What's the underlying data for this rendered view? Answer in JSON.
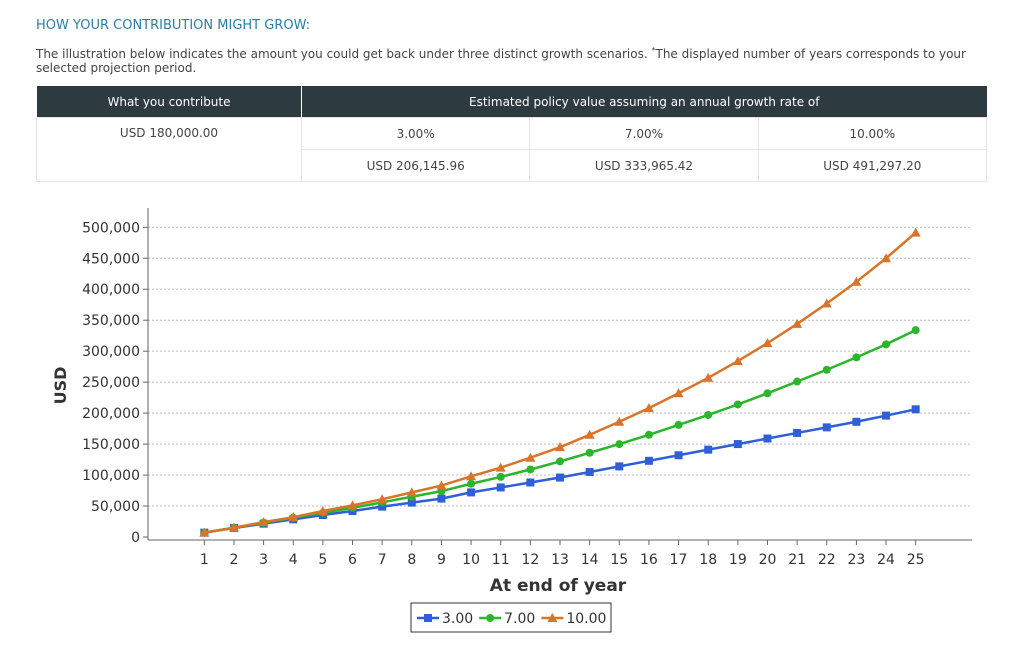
{
  "heading": "HOW YOUR CONTRIBUTION MIGHT GROW:",
  "intro": "The illustration below indicates the amount you could get back under three distinct growth scenarios.",
  "note_mark": "*",
  "note": "The displayed number of years corresponds to your selected projection period.",
  "table": {
    "headers": [
      "What you contribute",
      "Estimated policy value assuming an annual growth rate of"
    ],
    "contribution": "USD 180,000.00",
    "rates": [
      "3.00%",
      "7.00%",
      "10.00%"
    ],
    "values": [
      "USD 206,145.96",
      "USD 333,965.42",
      "USD 491,297.20"
    ]
  },
  "chart_data": {
    "type": "line",
    "x": [
      1,
      2,
      3,
      4,
      5,
      6,
      7,
      8,
      9,
      10,
      11,
      12,
      13,
      14,
      15,
      16,
      17,
      18,
      19,
      20,
      21,
      22,
      23,
      24,
      25
    ],
    "xlabel": "At end of year",
    "ylabel": "USD",
    "xlim": [
      -0.9,
      26.9
    ],
    "ylim": [
      0,
      515000
    ],
    "yticks": [
      0,
      {
        "value": 50000,
        "label": "50,000"
      },
      {
        "value": 100000,
        "label": "100,000"
      },
      {
        "value": 150000,
        "label": "150,000"
      },
      {
        "value": 200000,
        "label": "200,000"
      },
      {
        "value": 250000,
        "label": "250,000"
      },
      {
        "value": 300000,
        "label": "300,000"
      },
      {
        "value": 350000,
        "label": "350,000"
      },
      {
        "value": 400000,
        "label": "400,000"
      },
      {
        "value": 450000,
        "label": "450,000"
      },
      {
        "value": 500000,
        "label": "500,000"
      }
    ],
    "grid": true,
    "legend": "bottom",
    "series": [
      {
        "name": "3.00",
        "color": "#2f5fd6",
        "marker": "square",
        "values": [
          7000,
          14500,
          21500,
          28500,
          35500,
          42000,
          49000,
          55500,
          62000,
          72000,
          80000,
          88000,
          96000,
          105000,
          114000,
          123000,
          132000,
          141000,
          150000,
          159000,
          168000,
          177000,
          186000,
          196000,
          206145.96
        ]
      },
      {
        "name": "7.00",
        "color": "#2bb52b",
        "marker": "circle",
        "values": [
          7000,
          15000,
          23000,
          31000,
          39000,
          47000,
          56000,
          65000,
          74000,
          86000,
          97000,
          109000,
          122000,
          136000,
          150000,
          165000,
          181000,
          197000,
          214000,
          232000,
          251000,
          270000,
          290000,
          311000,
          333965.42
        ]
      },
      {
        "name": "10.00",
        "color": "#d9742a",
        "marker": "triangle",
        "values": [
          7000,
          15000,
          24000,
          32000,
          42000,
          51000,
          61000,
          72000,
          83000,
          98000,
          112000,
          128000,
          145000,
          165000,
          186000,
          208000,
          232000,
          257000,
          284000,
          313000,
          344000,
          377000,
          412000,
          450000,
          491297.2
        ]
      }
    ]
  }
}
